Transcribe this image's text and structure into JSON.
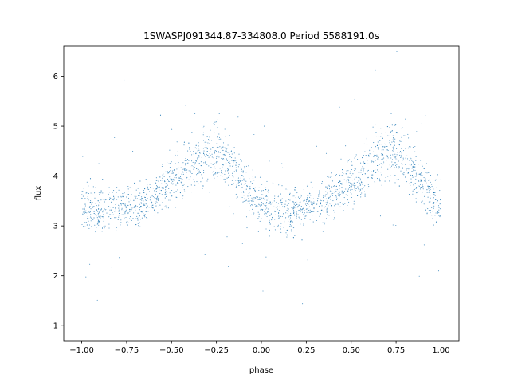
{
  "chart_data": {
    "type": "scatter",
    "title": "1SWASPJ091344.87-334808.0 Period 5588191.0s",
    "xlabel": "phase",
    "ylabel": "flux",
    "xlim": [
      -1.1,
      1.1
    ],
    "ylim": [
      0.7,
      6.6
    ],
    "xticks": [
      -1.0,
      -0.75,
      -0.5,
      -0.25,
      0.0,
      0.25,
      0.5,
      0.75,
      1.0
    ],
    "xtick_labels": [
      "−1.00",
      "−0.75",
      "−0.50",
      "−0.25",
      "0.00",
      "0.25",
      "0.50",
      "0.75",
      "1.00"
    ],
    "yticks": [
      1,
      2,
      3,
      4,
      5,
      6
    ],
    "ytick_labels": [
      "1",
      "2",
      "3",
      "4",
      "5",
      "6"
    ],
    "grid": false,
    "legend": "none",
    "marker_color": "#1f77b4",
    "profile": {
      "phase": [
        0.0,
        0.05,
        0.1,
        0.15,
        0.2,
        0.25,
        0.3,
        0.35,
        0.4,
        0.45,
        0.5,
        0.55,
        0.6,
        0.65,
        0.7,
        0.75,
        0.8,
        0.85,
        0.9,
        0.95,
        1.0
      ],
      "mean_flux": [
        3.4,
        3.35,
        3.3,
        3.3,
        3.35,
        3.4,
        3.45,
        3.5,
        3.6,
        3.75,
        3.9,
        4.05,
        4.2,
        4.35,
        4.45,
        4.5,
        4.35,
        4.1,
        3.85,
        3.6,
        3.4
      ],
      "scatter": [
        0.45,
        0.45,
        0.4,
        0.4,
        0.4,
        0.4,
        0.4,
        0.4,
        0.4,
        0.45,
        0.45,
        0.45,
        0.5,
        0.5,
        0.5,
        0.55,
        0.5,
        0.5,
        0.5,
        0.45,
        0.45
      ]
    }
  }
}
